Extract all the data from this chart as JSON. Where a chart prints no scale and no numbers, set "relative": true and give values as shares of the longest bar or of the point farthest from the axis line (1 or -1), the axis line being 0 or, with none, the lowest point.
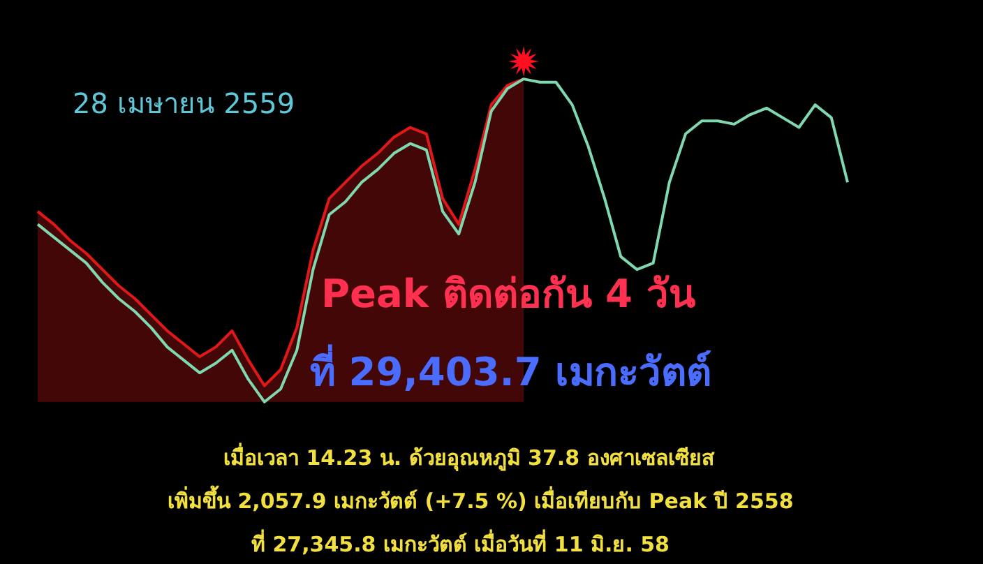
{
  "chart_data": {
    "type": "line",
    "relative": true,
    "title": "28 เมษายน 2559",
    "categories": [
      null,
      null,
      null,
      null,
      null,
      null,
      null,
      null,
      null,
      null,
      null,
      null,
      null,
      null,
      null,
      null,
      null,
      null,
      null,
      null,
      null,
      null,
      null,
      null,
      null,
      null,
      null,
      null,
      null,
      null,
      null,
      null,
      null,
      null,
      null,
      null,
      null,
      null,
      null,
      null,
      null,
      null,
      null,
      null,
      null,
      null,
      null,
      null,
      null,
      null,
      null
    ],
    "series": [
      {
        "type": "area",
        "color": "#e01818",
        "values": [
          0.59,
          0.55,
          0.5,
          0.46,
          0.41,
          0.36,
          0.32,
          0.27,
          0.22,
          0.18,
          0.14,
          0.17,
          0.22,
          0.13,
          0.05,
          0.1,
          0.23,
          0.47,
          0.63,
          0.68,
          0.73,
          0.77,
          0.82,
          0.85,
          0.83,
          0.63,
          0.55,
          0.72,
          0.92,
          0.98,
          1,
          null,
          null,
          null,
          null,
          null,
          null,
          null,
          null,
          null,
          null,
          null,
          null,
          null,
          null,
          null,
          null,
          null,
          null,
          null,
          null
        ]
      },
      {
        "type": "line",
        "color": "#7fd8b0",
        "values": [
          0.55,
          0.51,
          0.47,
          0.43,
          0.37,
          0.32,
          0.28,
          0.23,
          0.17,
          0.13,
          0.09,
          0.12,
          0.16,
          0.07,
          0,
          0.04,
          0.16,
          0.41,
          0.58,
          0.62,
          0.68,
          0.72,
          0.77,
          0.8,
          0.78,
          0.59,
          0.52,
          0.68,
          0.9,
          0.97,
          1,
          0.99,
          0.99,
          0.92,
          0.79,
          0.63,
          0.45,
          0.41,
          0.43,
          0.68,
          0.83,
          0.87,
          0.87,
          0.86,
          0.89,
          0.91,
          0.88,
          0.85,
          0.92,
          0.88,
          0.68
        ]
      }
    ],
    "annotations": [
      "Peak ติดต่อกัน 4 วัน",
      "ที่ 29,403.7 เมกะวัตต์",
      "เมื่อเวลา 14.23 น. ด้วยอุณหภูมิ 37.8 องศาเซลเซียส",
      "เพิ่มขึ้น 2,057.9 เมกะวัตต์ (+7.5 %) เมื่อเทียบกับ Peak ปี 2558",
      "ที่ 27,345.8 เมกะวัตต์ เมื่อวันที่ 11 มิ.ย. 58"
    ],
    "grid": false,
    "legend": false,
    "marker": "none",
    "line_style": "solid"
  }
}
